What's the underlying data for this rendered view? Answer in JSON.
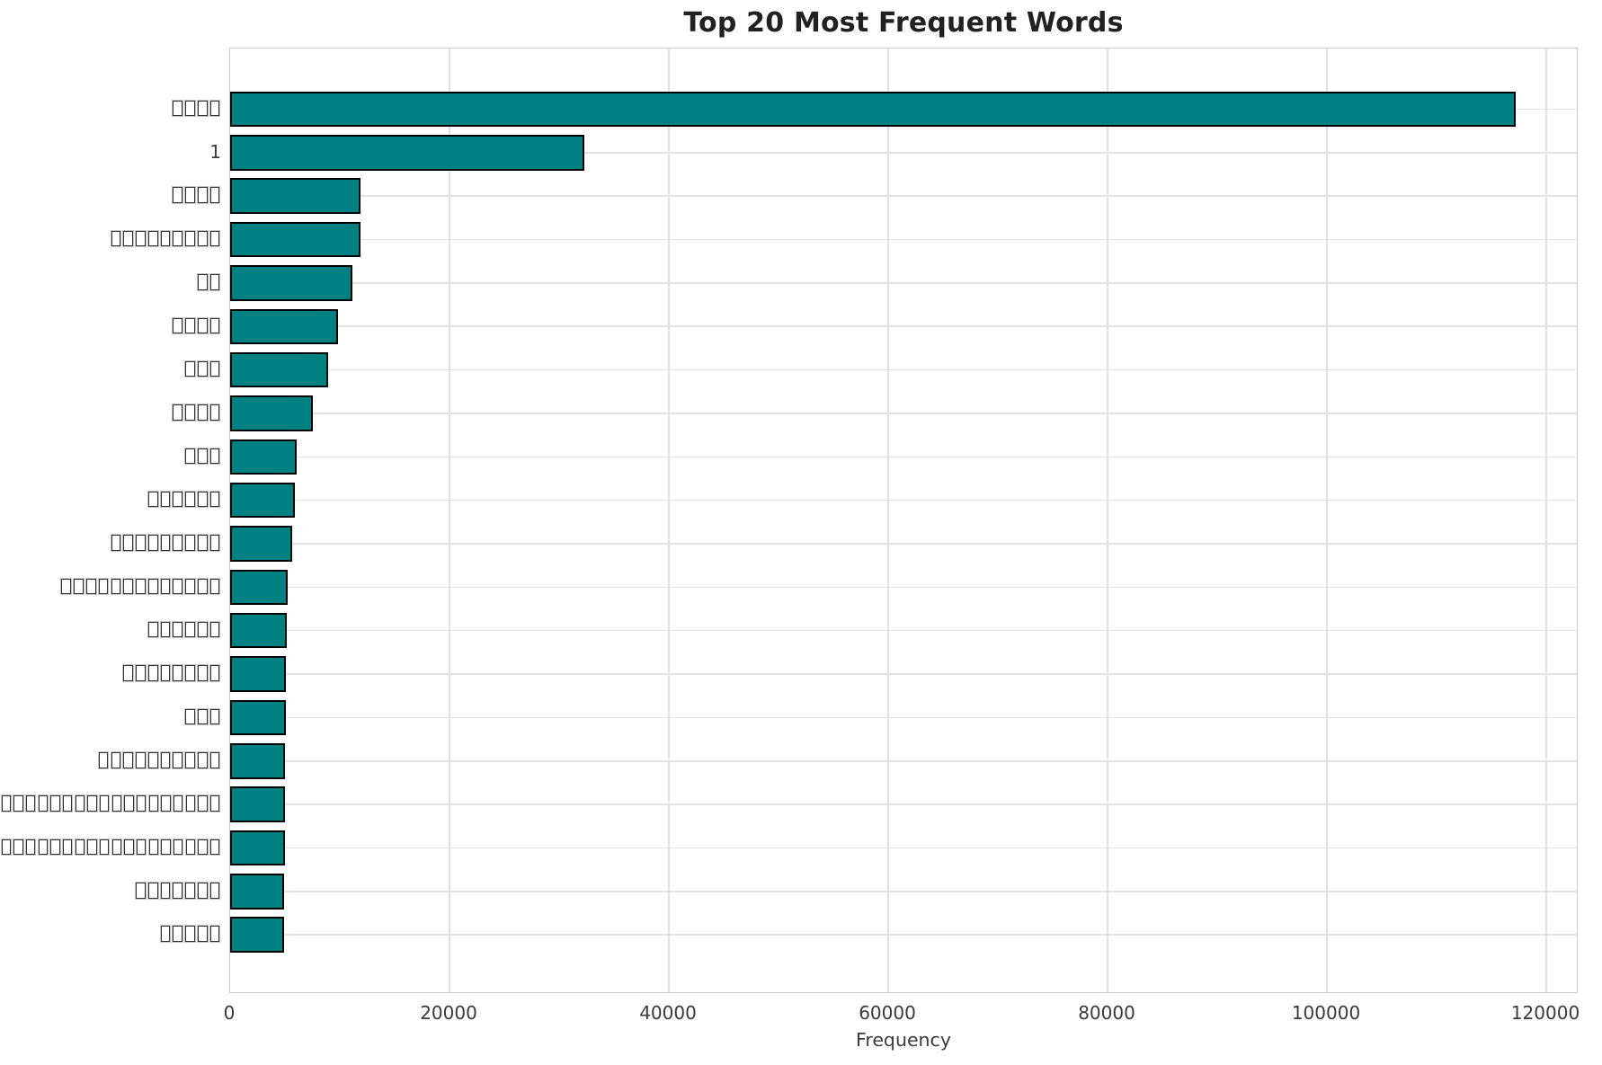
{
  "chart_data": {
    "type": "bar",
    "orientation": "horizontal",
    "title": "Top 20 Most Frequent Words",
    "xlabel": "Frequency",
    "ylabel": "",
    "grid": true,
    "legend_position": "none",
    "bar_color": "#008080",
    "bar_edge_color": "#000000",
    "xlim": [
      0,
      122950
    ],
    "x_ticks": [
      0,
      20000,
      40000,
      60000,
      80000,
      100000,
      120000
    ],
    "x_tick_labels": [
      "0",
      "20000",
      "40000",
      "60000",
      "80000",
      "100000",
      "120000"
    ],
    "category_label_style": "missing-glyph-box",
    "categories": [
      "□□□□",
      "1",
      "□□□□",
      "□□□□□□□□□",
      "□□",
      "□□□□",
      "□□□",
      "□□□□",
      "□□□",
      "□□□□□□",
      "□□□□□□□□□",
      "□□□□□□□□□□□□□",
      "□□□□□□",
      "□□□□□□□□",
      "□□□",
      "□□□□□□□□□□",
      "□□□□□□□□□□□□□□□□□□",
      "□□□□□□□□□□□□□□□□□□",
      "□□□□□□□",
      "□□□□□"
    ],
    "values": [
      117200,
      32300,
      11900,
      11850,
      11150,
      9800,
      8950,
      7500,
      6100,
      5900,
      5650,
      5250,
      5150,
      5100,
      5050,
      5020,
      5000,
      4960,
      4930,
      4900
    ]
  }
}
